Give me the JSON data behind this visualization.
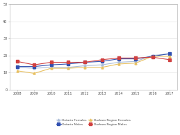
{
  "years": [
    2008,
    2009,
    2010,
    2011,
    2012,
    2013,
    2014,
    2015,
    2016,
    2017
  ],
  "ontario_females": [
    13.0,
    12.5,
    13.0,
    13.0,
    14.0,
    14.5,
    16.0,
    16.5,
    20.0,
    21.0
  ],
  "ontario_males": [
    13.5,
    13.5,
    14.5,
    15.0,
    16.0,
    16.5,
    18.0,
    18.0,
    19.5,
    21.0
  ],
  "durham_females": [
    11.0,
    9.5,
    12.5,
    12.5,
    13.0,
    13.0,
    15.0,
    15.5,
    19.5,
    19.5
  ],
  "durham_males": [
    16.5,
    14.5,
    16.0,
    16.0,
    16.0,
    17.5,
    18.5,
    18.5,
    19.0,
    17.5
  ],
  "colors": {
    "ontario_females": "#aabcd8",
    "ontario_males": "#3050b0",
    "durham_females": "#e8c060",
    "durham_males": "#d04040"
  },
  "ylim": [
    0,
    50
  ],
  "yticks": [
    0,
    10,
    20,
    30,
    40,
    50
  ],
  "background_color": "#ffffff",
  "plot_bg": "#ffffff",
  "grid_color": "#e0e0e0",
  "legend_labels": [
    "Ontario Females",
    "Ontario Males",
    "Durham Region Females",
    "Durham Region Males"
  ]
}
